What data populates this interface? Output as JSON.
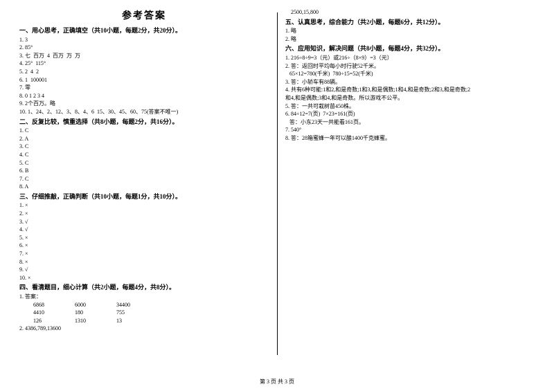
{
  "title": "参考答案",
  "footer": "第 3 页 共 3 页",
  "sec1": {
    "heading": "一、用心思考，正确填空（共10小题，每题2分，共20分）。",
    "items": [
      "1. 3",
      "2. 85°",
      "3. 七  百万  4  百万  万  万",
      "4. 25°  115°",
      "5. 2  4  2",
      "6. 1  100001",
      "7. 零",
      "8. 0 1 2 3 4",
      "9. 2个百万。略",
      "10. 1、24、2、12、3、8、4、6  15、30、45、60、75(答案不唯一)"
    ]
  },
  "sec2": {
    "heading": "二、反复比较，慎重选择（共8小题，每题2分，共16分）。",
    "items": [
      "1. C",
      "2. A",
      "3. C",
      "4. C",
      "5. C",
      "6. B",
      "7. C",
      "8. A"
    ]
  },
  "sec3": {
    "heading": "三、仔细推敲，正确判断（共10小题，每题1分，共10分）。",
    "items": [
      "1. ×",
      "2. ×",
      "3. √",
      "4. √",
      "5. ×",
      "6. ×",
      "7. ×",
      "8. ×",
      "9. √",
      "10. ×"
    ]
  },
  "sec4": {
    "heading": "四、看清题目，细心计算（共2小题，每题4分，共8分）。",
    "lead1": "1. 答案：",
    "rows": [
      [
        "6868",
        "6000",
        "34400"
      ],
      [
        "4410",
        "180",
        "755"
      ],
      [
        "126",
        "1310",
        "13"
      ]
    ],
    "item2": "2. 4386,789,13600"
  },
  "right_top": "    2500,15,800",
  "sec5": {
    "heading": "五、认真思考，综合能力（共2小题，每题6分，共12分）。",
    "items": [
      "1. 略",
      "2. 略"
    ]
  },
  "sec6": {
    "heading": "六、应用知识，解决问题（共8小题，每题4分，共32分）。",
    "items": [
      "1. 216÷8÷9=3（元）或216÷（8×9）=3（元）",
      "2. 答：返回时平均每小时行驶52千米。",
      "   65×12=780(千米)  780÷15=52(千米)",
      "3. 答：小轿车有88辆。",
      "4. 共有6种可能:1和2,和是奇数;1和3,和是偶数;1和4,和是奇数;2和3,和是奇数;2",
      "和4,和是偶数;3和4,和是奇数。所以游戏不公平。",
      "5. 答：一共可栽树苗450株。",
      "6. 84÷12=7(页)  7×23=161(页)",
      "   答：小东23天一共能看161页。",
      "7. 540°",
      "8. 答：28箱蜜蜂一年可以酿1400千克蜂蜜。"
    ]
  }
}
